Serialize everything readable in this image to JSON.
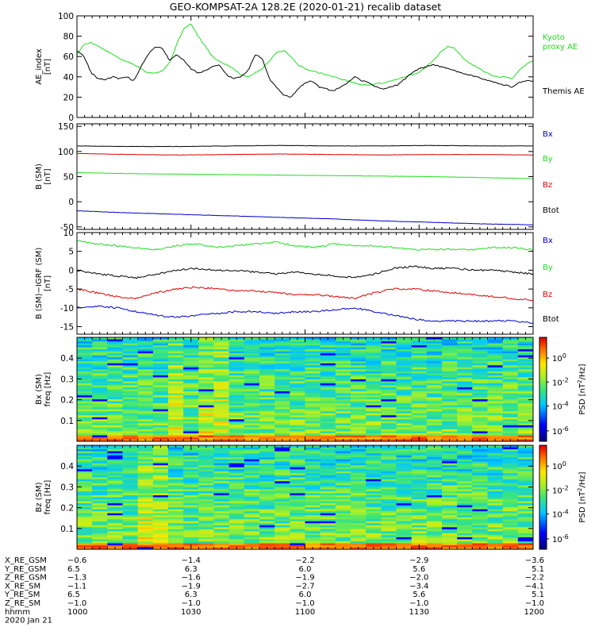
{
  "title": "GEO-KOMPSAT-2A 128.2E (2020-01-21) recalib dataset",
  "colors": {
    "black": "#000000",
    "blue": "#0000cc",
    "green": "#22dd22",
    "red": "#dd0000"
  },
  "chart_data": [
    {
      "id": "ae",
      "type": "line",
      "ylabel": [
        "AE_index",
        "[nT]"
      ],
      "ylim": [
        0,
        100
      ],
      "yticks": [
        0,
        20,
        40,
        60,
        80,
        100
      ],
      "legend": [
        {
          "text": "Kyoto",
          "color": "#22dd22"
        },
        {
          "text": "proxy AE",
          "color": "#22dd22"
        },
        {
          "text": "Themis AE",
          "color": "#000000"
        }
      ],
      "series": [
        {
          "name": "Kyoto proxy AE",
          "color": "#22dd22",
          "values": [
            62,
            72,
            74,
            70,
            66,
            62,
            58,
            55,
            52,
            48,
            44,
            44,
            46,
            54,
            72,
            88,
            92,
            80,
            70,
            60,
            55,
            52,
            48,
            42,
            40,
            44,
            48,
            56,
            64,
            66,
            60,
            52,
            48,
            46,
            44,
            42,
            40,
            38,
            36,
            34,
            32,
            32,
            33,
            34,
            36,
            38,
            40,
            42,
            44,
            50,
            56,
            64,
            70,
            68,
            60,
            54,
            50,
            46,
            42,
            40,
            40,
            38,
            46,
            52,
            56
          ]
        },
        {
          "name": "Themis AE",
          "color": "#000000",
          "values": [
            66,
            60,
            44,
            38,
            37,
            40,
            38,
            40,
            36,
            50,
            62,
            70,
            68,
            56,
            62,
            56,
            48,
            44,
            46,
            50,
            52,
            42,
            38,
            40,
            46,
            62,
            58,
            38,
            30,
            22,
            20,
            28,
            34,
            36,
            30,
            28,
            26,
            30,
            34,
            40,
            36,
            34,
            30,
            28,
            30,
            32,
            38,
            44,
            48,
            50,
            52,
            50,
            48,
            46,
            44,
            42,
            40,
            38,
            36,
            34,
            32,
            30,
            34,
            36,
            36
          ]
        }
      ]
    },
    {
      "id": "bsm",
      "type": "line",
      "ylabel": [
        "B (SM)",
        "[nT]"
      ],
      "ylim": [
        -55,
        155
      ],
      "yticks": [
        -50,
        0,
        50,
        100,
        150
      ],
      "legend": [
        {
          "text": "Bx",
          "color": "#0000cc"
        },
        {
          "text": "By",
          "color": "#22dd22"
        },
        {
          "text": "Bz",
          "color": "#dd0000"
        },
        {
          "text": "Btot",
          "color": "#000000"
        }
      ],
      "series": [
        {
          "name": "Btot",
          "color": "#000000",
          "values": [
            111,
            110,
            110,
            111,
            112,
            111,
            111,
            112,
            111,
            111
          ]
        },
        {
          "name": "Bz",
          "color": "#dd0000",
          "values": [
            96,
            94,
            93,
            94,
            95,
            94,
            93,
            94,
            94,
            93
          ]
        },
        {
          "name": "By",
          "color": "#22dd22",
          "values": [
            58,
            56,
            55,
            54,
            53,
            52,
            51,
            50,
            48,
            46
          ]
        },
        {
          "name": "Bx",
          "color": "#0000cc",
          "values": [
            -18,
            -22,
            -25,
            -28,
            -31,
            -34,
            -38,
            -41,
            -44,
            -46
          ]
        }
      ]
    },
    {
      "id": "bdiff",
      "type": "line",
      "ylabel": [
        "B (SM)−IGRF (SM)",
        "[nT]"
      ],
      "ylim": [
        -17,
        10
      ],
      "yticks": [
        -15,
        -10,
        -5,
        0,
        5,
        10
      ],
      "legend": [
        {
          "text": "Bx",
          "color": "#0000cc"
        },
        {
          "text": "By",
          "color": "#22dd22"
        },
        {
          "text": "Bz",
          "color": "#dd0000"
        },
        {
          "text": "Btot",
          "color": "#000000"
        }
      ],
      "series": [
        {
          "name": "By",
          "color": "#22dd22",
          "values": [
            8,
            7,
            6.5,
            6,
            5.5,
            6.5,
            7,
            6,
            6.5,
            7,
            7.5,
            6.5,
            6,
            7,
            6.5,
            6.5,
            6,
            5.5,
            5.5,
            5.5,
            5.5,
            6,
            6,
            5.5
          ]
        },
        {
          "name": "Btot",
          "color": "#000000",
          "values": [
            0,
            -1,
            -1.5,
            -2,
            -1,
            0,
            0.5,
            0,
            0,
            -0.5,
            -1,
            -0.5,
            -1,
            -1.5,
            -2,
            -1,
            0.5,
            1,
            0.5,
            0.5,
            0,
            0,
            -0.5,
            -1
          ]
        },
        {
          "name": "Bz",
          "color": "#dd0000",
          "values": [
            -5,
            -6,
            -7,
            -7.5,
            -6,
            -5,
            -4.5,
            -5,
            -5.5,
            -5.5,
            -6,
            -6.5,
            -6.5,
            -7,
            -7.5,
            -6,
            -5,
            -5,
            -5.5,
            -6,
            -6.5,
            -7,
            -7.5,
            -8
          ]
        },
        {
          "name": "Bx",
          "color": "#0000cc",
          "values": [
            -10,
            -9.5,
            -10,
            -11,
            -12,
            -12.5,
            -12,
            -11.5,
            -11,
            -11,
            -11.5,
            -11,
            -11,
            -10.5,
            -10,
            -11,
            -12,
            -13,
            -13.5,
            -13.5,
            -13.5,
            -13.5,
            -13.5,
            -14
          ]
        }
      ]
    },
    {
      "id": "psd_bx",
      "type": "heatmap",
      "ylabel": [
        "Bx (SM)",
        "freq [Hz]"
      ],
      "ylim": [
        0,
        0.5
      ],
      "yticks": [
        0.1,
        0.2,
        0.3,
        0.4
      ],
      "ytick_labels": [
        "0.1",
        "0.2",
        "0.3",
        "0.4"
      ],
      "colorbar_label": "PSD [nT^2/Hz]",
      "colorbar_ticks": [
        "10^0",
        "10^-2",
        "10^-4",
        "10^-6"
      ],
      "hot_columns": [
        6,
        8,
        9
      ],
      "seed": 7
    },
    {
      "id": "psd_bz",
      "type": "heatmap",
      "ylabel": [
        "Bz (SM)",
        "freq [Hz]"
      ],
      "ylim": [
        0,
        0.5
      ],
      "yticks": [
        0.1,
        0.2,
        0.3,
        0.4
      ],
      "ytick_labels": [
        "0.1",
        "0.2",
        "0.3",
        "0.4"
      ],
      "colorbar_label": "PSD [nT^2/Hz]",
      "colorbar_ticks": [
        "10^0",
        "10^-2",
        "10^-4",
        "10^-6"
      ],
      "hot_columns": [
        4,
        5
      ],
      "seed": 13
    }
  ],
  "orbit_table": {
    "row_labels": [
      "X_RE_GSM",
      "Y_RE_GSM",
      "Z_RE_GSM",
      "X_RE_SM",
      "Y_RE_SM",
      "Z_RE_SM",
      "hhmm",
      "2020 Jan 21"
    ],
    "columns": [
      [
        "-0.6",
        "6.5",
        "-1.3",
        "-1.1",
        "6.5",
        "-1.0",
        "1000"
      ],
      [
        "-1.4",
        "6.3",
        "-1.6",
        "-1.9",
        "6.3",
        "-1.0",
        "1030"
      ],
      [
        "-2.2",
        "6.0",
        "-1.9",
        "-2.7",
        "6.0",
        "-1.0",
        "1100"
      ],
      [
        "-2.9",
        "5.6",
        "-2.0",
        "-3.4",
        "5.6",
        "-1.0",
        "1130"
      ],
      [
        "-3.6",
        "5.1",
        "-2.2",
        "-4.1",
        "5.1",
        "-1.0",
        "1200"
      ]
    ]
  }
}
